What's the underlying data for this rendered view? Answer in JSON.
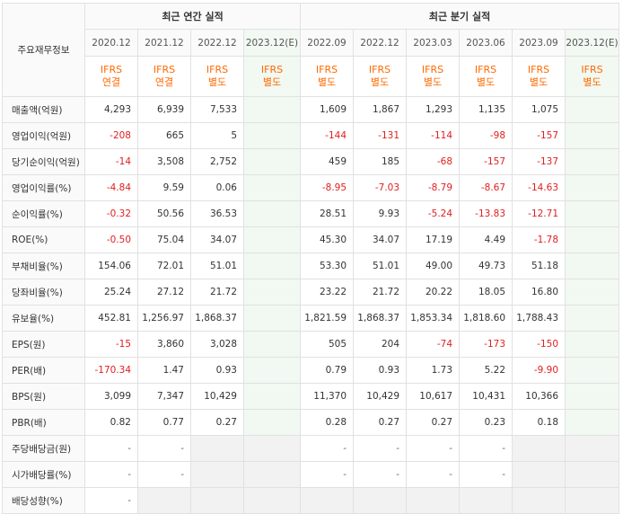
{
  "header": {
    "row_label": "주요재무정보",
    "annual_title": "최근 연간 실적",
    "quarterly_title": "최근 분기 실적",
    "periods": [
      {
        "date": "2020.12",
        "std": "IFRS",
        "basis": "연결",
        "estimate": false,
        "group": "annual"
      },
      {
        "date": "2021.12",
        "std": "IFRS",
        "basis": "연결",
        "estimate": false,
        "group": "annual"
      },
      {
        "date": "2022.12",
        "std": "IFRS",
        "basis": "별도",
        "estimate": false,
        "group": "annual"
      },
      {
        "date": "2023.12(E)",
        "std": "IFRS",
        "basis": "별도",
        "estimate": true,
        "group": "annual"
      },
      {
        "date": "2022.09",
        "std": "IFRS",
        "basis": "별도",
        "estimate": false,
        "group": "quarterly"
      },
      {
        "date": "2022.12",
        "std": "IFRS",
        "basis": "별도",
        "estimate": false,
        "group": "quarterly"
      },
      {
        "date": "2023.03",
        "std": "IFRS",
        "basis": "별도",
        "estimate": false,
        "group": "quarterly"
      },
      {
        "date": "2023.06",
        "std": "IFRS",
        "basis": "별도",
        "estimate": false,
        "group": "quarterly"
      },
      {
        "date": "2023.09",
        "std": "IFRS",
        "basis": "별도",
        "estimate": false,
        "group": "quarterly"
      },
      {
        "date": "2023.12(E)",
        "std": "IFRS",
        "basis": "별도",
        "estimate": true,
        "group": "quarterly"
      }
    ]
  },
  "colors": {
    "negative": "#e01e1e",
    "ifrs_orange": "#ff6a00",
    "estimate_bg": "#f2f8f2"
  },
  "rows": [
    {
      "label": "매출액(억원)",
      "values": [
        "4,293",
        "6,939",
        "7,533",
        "",
        "1,609",
        "1,867",
        "1,293",
        "1,135",
        "1,075",
        ""
      ]
    },
    {
      "label": "영업이익(억원)",
      "values": [
        "-208",
        "665",
        "5",
        "",
        "-144",
        "-131",
        "-114",
        "-98",
        "-157",
        ""
      ]
    },
    {
      "label": "당기순이익(억원)",
      "values": [
        "-14",
        "3,508",
        "2,752",
        "",
        "459",
        "185",
        "-68",
        "-157",
        "-137",
        ""
      ]
    },
    {
      "label": "영업이익률(%)",
      "values": [
        "-4.84",
        "9.59",
        "0.06",
        "",
        "-8.95",
        "-7.03",
        "-8.79",
        "-8.67",
        "-14.63",
        ""
      ]
    },
    {
      "label": "순이익률(%)",
      "values": [
        "-0.32",
        "50.56",
        "36.53",
        "",
        "28.51",
        "9.93",
        "-5.24",
        "-13.83",
        "-12.71",
        ""
      ]
    },
    {
      "label": "ROE(%)",
      "values": [
        "-0.50",
        "75.04",
        "34.07",
        "",
        "45.30",
        "34.07",
        "17.19",
        "4.49",
        "-1.78",
        ""
      ]
    },
    {
      "label": "부채비율(%)",
      "values": [
        "154.06",
        "72.01",
        "51.01",
        "",
        "53.30",
        "51.01",
        "49.00",
        "49.73",
        "51.18",
        ""
      ]
    },
    {
      "label": "당좌비율(%)",
      "values": [
        "25.24",
        "27.12",
        "21.72",
        "",
        "23.22",
        "21.72",
        "20.22",
        "18.05",
        "16.80",
        ""
      ]
    },
    {
      "label": "유보율(%)",
      "values": [
        "452.81",
        "1,256.97",
        "1,868.37",
        "",
        "1,821.59",
        "1,868.37",
        "1,853.34",
        "1,818.60",
        "1,788.43",
        ""
      ]
    },
    {
      "label": "EPS(원)",
      "values": [
        "-15",
        "3,860",
        "3,028",
        "",
        "505",
        "204",
        "-74",
        "-173",
        "-150",
        ""
      ]
    },
    {
      "label": "PER(배)",
      "values": [
        "-170.34",
        "1.47",
        "0.93",
        "",
        "0.79",
        "0.93",
        "1.73",
        "5.22",
        "-9.90",
        ""
      ]
    },
    {
      "label": "BPS(원)",
      "values": [
        "3,099",
        "7,347",
        "10,429",
        "",
        "11,370",
        "10,429",
        "10,617",
        "10,431",
        "10,366",
        ""
      ]
    },
    {
      "label": "PBR(배)",
      "values": [
        "0.82",
        "0.77",
        "0.27",
        "",
        "0.28",
        "0.27",
        "0.27",
        "0.23",
        "0.18",
        ""
      ]
    },
    {
      "label": "주당배당금(원)",
      "values": [
        "-",
        "-",
        "",
        "",
        "-",
        "-",
        "-",
        "-",
        "",
        ""
      ]
    },
    {
      "label": "시가배당률(%)",
      "values": [
        "-",
        "-",
        "",
        "",
        "-",
        "-",
        "-",
        "-",
        "",
        ""
      ]
    },
    {
      "label": "배당성향(%)",
      "values": [
        "-",
        "",
        "",
        "",
        "",
        "",
        "",
        "",
        "",
        ""
      ]
    }
  ]
}
